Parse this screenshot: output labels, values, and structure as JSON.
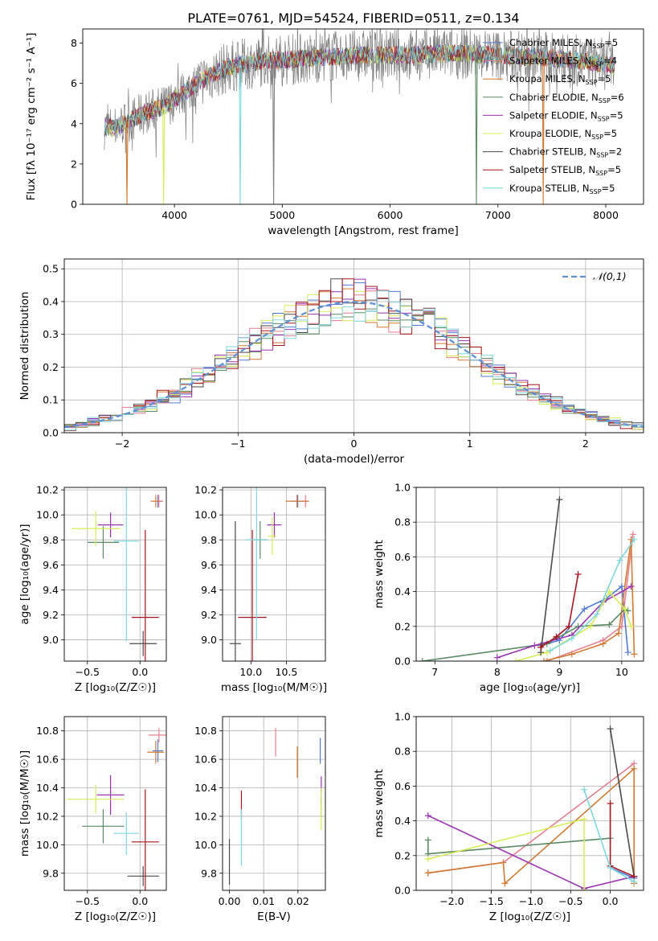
{
  "figure": {
    "title": "PLATE=0761, MJD=54524, FIBERID=0511, z=0.134"
  },
  "models": [
    {
      "name": "Chabrier MILES",
      "nssp": "5",
      "color": "#4f7bd1"
    },
    {
      "name": "Salpeter MILES",
      "nssp": "4",
      "color": "#e47f91"
    },
    {
      "name": "Kroupa MILES",
      "nssp": "5",
      "color": "#d07a33"
    },
    {
      "name": "Chabrier ELODIE",
      "nssp": "6",
      "color": "#5a8a63"
    },
    {
      "name": "Salpeter ELODIE",
      "nssp": "5",
      "color": "#9a32b0"
    },
    {
      "name": "Kroupa ELODIE",
      "nssp": "5",
      "color": "#d8ec5a"
    },
    {
      "name": "Chabrier STELIB",
      "nssp": "2",
      "color": "#4a4a4a"
    },
    {
      "name": "Salpeter STELIB",
      "nssp": "5",
      "color": "#a8141e"
    },
    {
      "name": "Kroupa STELIB",
      "nssp": "5",
      "color": "#7fd7de"
    }
  ],
  "chart_data": [
    {
      "type": "line",
      "panel": "spectrum",
      "xlabel": "wavelength [Angstrom, rest frame]",
      "ylabel": "Flux [f_λ 10^-17 erg cm^-2 s^-1 A^-1]",
      "xlim": [
        3150,
        8350
      ],
      "ylim": [
        0,
        8.7
      ],
      "xticks": [
        4000,
        5000,
        6000,
        7000,
        8000
      ],
      "yticks": [
        0,
        2,
        4,
        6,
        8
      ],
      "grid": false,
      "legend_position": "right",
      "legend_suffix": "N_SSP=",
      "data_color": "#808080",
      "continuum": [
        {
          "x": 3350,
          "y": 3.8
        },
        {
          "x": 3450,
          "y": 3.8
        },
        {
          "x": 3600,
          "y": 4.2
        },
        {
          "x": 3750,
          "y": 4.6
        },
        {
          "x": 3900,
          "y": 4.8
        },
        {
          "x": 4000,
          "y": 5.2
        },
        {
          "x": 4100,
          "y": 5.6
        },
        {
          "x": 4300,
          "y": 6.3
        },
        {
          "x": 4500,
          "y": 6.8
        },
        {
          "x": 4800,
          "y": 7.1
        },
        {
          "x": 5100,
          "y": 7.2
        },
        {
          "x": 5400,
          "y": 7.3
        },
        {
          "x": 5800,
          "y": 7.4
        },
        {
          "x": 6200,
          "y": 7.4
        },
        {
          "x": 6600,
          "y": 7.5
        },
        {
          "x": 7000,
          "y": 7.4
        },
        {
          "x": 7400,
          "y": 7.3
        },
        {
          "x": 7800,
          "y": 7.1
        },
        {
          "x": 8080,
          "y": 6.9
        }
      ],
      "dips": [
        {
          "x": 3560,
          "color": "#d07a33"
        },
        {
          "x": 3900,
          "color": "#d8ec5a"
        },
        {
          "x": 4610,
          "color": "#7fd7de"
        },
        {
          "x": 4920,
          "color": "#808080"
        },
        {
          "x": 6800,
          "color": "#5a8a63"
        },
        {
          "x": 7420,
          "color": "#d07a33"
        }
      ]
    },
    {
      "type": "histogram",
      "panel": "residuals",
      "xlabel": "(data-model)/error",
      "ylabel": "Normed distribution",
      "xlim": [
        -2.5,
        2.5
      ],
      "ylim": [
        0,
        0.53
      ],
      "xticks": [
        -2,
        -1,
        0,
        1,
        2
      ],
      "yticks": [
        0.0,
        0.1,
        0.2,
        0.3,
        0.4,
        0.5
      ],
      "grid": true,
      "bin_width": 0.1,
      "reference_curve": {
        "name": "𝒩(0,1)",
        "mean": 0,
        "sigma": 1,
        "color": "#5b8fd6",
        "style": "dashed"
      },
      "legend_position": "top-right"
    },
    {
      "type": "scatter",
      "panel": "age-vs-Z",
      "xlabel": "Z [log10(Z/Z☉)]",
      "ylabel": "age [log10(age/yr)]",
      "xlim": [
        -0.72,
        0.25
      ],
      "ylim": [
        8.83,
        10.22
      ],
      "xticks": [
        -0.5,
        0.0
      ],
      "yticks": [
        9.0,
        9.2,
        9.4,
        9.6,
        9.8,
        10.0,
        10.2
      ],
      "grid": true,
      "points": [
        {
          "model": 0,
          "x": 0.17,
          "y": 10.11,
          "xerr": 0.05,
          "yerr": 0.05
        },
        {
          "model": 1,
          "x": 0.18,
          "y": 10.11,
          "xerr": 0.04,
          "yerr": 0.05
        },
        {
          "model": 2,
          "x": 0.15,
          "y": 10.11,
          "xerr": 0.05,
          "yerr": 0.05
        },
        {
          "model": 3,
          "x": -0.35,
          "y": 9.78,
          "xerr": 0.15,
          "yerr": 0.13
        },
        {
          "model": 4,
          "x": -0.28,
          "y": 9.92,
          "xerr": 0.12,
          "yerr": 0.1
        },
        {
          "model": 5,
          "x": -0.42,
          "y": 9.89,
          "xerr": 0.23,
          "yerr": 0.14
        },
        {
          "model": 6,
          "x": 0.03,
          "y": 8.97,
          "xerr": 0.13,
          "yerr": 0.1
        },
        {
          "model": 7,
          "x": 0.05,
          "y": 9.18,
          "xerr": 0.13,
          "yerr": 0.7
        },
        {
          "model": 8,
          "x": -0.13,
          "y": 9.79,
          "xerr": 0.12,
          "yerr": 0.8
        }
      ]
    },
    {
      "type": "scatter",
      "panel": "age-vs-mass",
      "xlabel": "mass [log10(M/M☉)]",
      "ylabel": "",
      "xlim": [
        9.6,
        11.05
      ],
      "ylim": [
        8.83,
        10.22
      ],
      "xticks": [
        10.0,
        10.5
      ],
      "yticks": [
        9.0,
        9.2,
        9.4,
        9.6,
        9.8,
        10.0,
        10.2
      ],
      "grid": true,
      "points": [
        {
          "model": 0,
          "x": 10.66,
          "y": 10.11,
          "xerr": 0.1,
          "yerr": 0.05
        },
        {
          "model": 1,
          "x": 10.77,
          "y": 10.11,
          "xerr": 0.05,
          "yerr": 0.05
        },
        {
          "model": 2,
          "x": 10.65,
          "y": 10.11,
          "xerr": 0.16,
          "yerr": 0.05
        },
        {
          "model": 3,
          "x": 10.13,
          "y": 9.8,
          "xerr": 0.1,
          "yerr": 0.15
        },
        {
          "model": 4,
          "x": 10.33,
          "y": 9.92,
          "xerr": 0.1,
          "yerr": 0.1
        },
        {
          "model": 5,
          "x": 10.3,
          "y": 9.83,
          "xerr": 0.06,
          "yerr": 0.15
        },
        {
          "model": 6,
          "x": 9.78,
          "y": 8.97,
          "xerr": 0.08,
          "yerr": 0.98
        },
        {
          "model": 7,
          "x": 10.02,
          "y": 9.18,
          "xerr": 0.2,
          "yerr": 0.7
        },
        {
          "model": 8,
          "x": 10.08,
          "y": 9.8,
          "xerr": 0.15,
          "yerr": 0.8
        }
      ]
    },
    {
      "type": "line",
      "panel": "massweight-vs-age",
      "xlabel": "age [log10(age/yr)]",
      "ylabel": "mass weight",
      "xlim": [
        6.7,
        10.35
      ],
      "ylim": [
        0.0,
        1.0
      ],
      "xticks": [
        7,
        8,
        9,
        10
      ],
      "yticks": [
        0.0,
        0.2,
        0.4,
        0.6,
        0.8,
        1.0
      ],
      "grid": true,
      "series": [
        {
          "model": 0,
          "points": [
            [
              8.7,
              0.09
            ],
            [
              9.0,
              0.12
            ],
            [
              9.4,
              0.3
            ],
            [
              9.75,
              0.36
            ],
            [
              10.0,
              0.43
            ],
            [
              10.1,
              0.05
            ]
          ]
        },
        {
          "model": 1,
          "points": [
            [
              8.8,
              0.0
            ],
            [
              9.7,
              0.12
            ],
            [
              10.0,
              0.2
            ],
            [
              10.18,
              0.73
            ]
          ]
        },
        {
          "model": 2,
          "points": [
            [
              8.75,
              0.0
            ],
            [
              9.2,
              0.04
            ],
            [
              9.7,
              0.1
            ],
            [
              9.95,
              0.16
            ],
            [
              10.15,
              0.7
            ],
            [
              10.2,
              0.04
            ]
          ]
        },
        {
          "model": 3,
          "points": [
            [
              6.8,
              0.0
            ],
            [
              8.8,
              0.1
            ],
            [
              9.3,
              0.2
            ],
            [
              9.8,
              0.21
            ],
            [
              10.05,
              0.3
            ],
            [
              10.1,
              0.29
            ]
          ]
        },
        {
          "model": 4,
          "points": [
            [
              8.0,
              0.02
            ],
            [
              8.6,
              0.09
            ],
            [
              9.2,
              0.15
            ],
            [
              9.7,
              0.34
            ],
            [
              10.15,
              0.43
            ]
          ]
        },
        {
          "model": 5,
          "points": [
            [
              8.3,
              0.0
            ],
            [
              8.8,
              0.05
            ],
            [
              9.5,
              0.2
            ],
            [
              9.8,
              0.4
            ],
            [
              10.05,
              0.3
            ],
            [
              10.15,
              0.2
            ]
          ]
        },
        {
          "model": 6,
          "points": [
            [
              8.7,
              0.05
            ],
            [
              9.0,
              0.93
            ]
          ]
        },
        {
          "model": 7,
          "points": [
            [
              8.7,
              0.08
            ],
            [
              8.95,
              0.14
            ],
            [
              9.15,
              0.2
            ],
            [
              9.3,
              0.5
            ]
          ]
        },
        {
          "model": 8,
          "points": [
            [
              8.85,
              0.06
            ],
            [
              9.2,
              0.13
            ],
            [
              9.6,
              0.27
            ],
            [
              9.97,
              0.58
            ],
            [
              10.2,
              0.7
            ]
          ]
        }
      ]
    },
    {
      "type": "scatter",
      "panel": "mass-vs-Z",
      "xlabel": "Z [log10(Z/Z☉)]",
      "ylabel": "mass [log10(M/M☉)]",
      "xlim": [
        -0.72,
        0.25
      ],
      "ylim": [
        9.68,
        10.9
      ],
      "xticks": [
        -0.5,
        0.0
      ],
      "yticks": [
        9.8,
        10.0,
        10.2,
        10.4,
        10.6,
        10.8
      ],
      "grid": true,
      "points": [
        {
          "model": 0,
          "x": 0.17,
          "y": 10.66,
          "xerr": 0.05,
          "yerr": 0.08
        },
        {
          "model": 1,
          "x": 0.18,
          "y": 10.77,
          "xerr": 0.1,
          "yerr": 0.05
        },
        {
          "model": 2,
          "x": 0.15,
          "y": 10.65,
          "xerr": 0.08,
          "yerr": 0.08
        },
        {
          "model": 3,
          "x": -0.35,
          "y": 10.13,
          "xerr": 0.2,
          "yerr": 0.12
        },
        {
          "model": 4,
          "x": -0.28,
          "y": 10.35,
          "xerr": 0.13,
          "yerr": 0.14
        },
        {
          "model": 5,
          "x": -0.42,
          "y": 10.32,
          "xerr": 0.27,
          "yerr": 0.1
        },
        {
          "model": 6,
          "x": 0.03,
          "y": 9.78,
          "xerr": 0.15,
          "yerr": 0.07
        },
        {
          "model": 7,
          "x": 0.05,
          "y": 10.02,
          "xerr": 0.13,
          "yerr": 0.37
        },
        {
          "model": 8,
          "x": -0.13,
          "y": 10.08,
          "xerr": 0.12,
          "yerr": 0.15
        }
      ]
    },
    {
      "type": "scatter",
      "panel": "mass-vs-EBV",
      "xlabel": "E(B-V)",
      "ylabel": "",
      "xlim": [
        -0.002,
        0.028
      ],
      "ylim": [
        9.68,
        10.9
      ],
      "xticks": [
        0.0,
        0.01,
        0.02
      ],
      "yticks": [
        9.8,
        10.0,
        10.2,
        10.4,
        10.6,
        10.8
      ],
      "grid": true,
      "points": [
        {
          "model": 0,
          "x": 0.0265,
          "y": 10.66,
          "xerr": 0,
          "yerr": 0.09
        },
        {
          "model": 1,
          "x": 0.0135,
          "y": 10.72,
          "xerr": 0,
          "yerr": 0.1
        },
        {
          "model": 2,
          "x": 0.0198,
          "y": 10.58,
          "xerr": 0,
          "yerr": 0.11
        },
        {
          "model": 3,
          "x": 0.0268,
          "y": 10.26,
          "xerr": 0,
          "yerr": 0.07
        },
        {
          "model": 4,
          "x": 0.0268,
          "y": 10.38,
          "xerr": 0,
          "yerr": 0.1
        },
        {
          "model": 5,
          "x": 0.0268,
          "y": 10.25,
          "xerr": 0,
          "yerr": 0.15
        },
        {
          "model": 6,
          "x": 0.0,
          "y": 9.88,
          "xerr": 0,
          "yerr": 0.16
        },
        {
          "model": 7,
          "x": 0.0035,
          "y": 10.28,
          "xerr": 0,
          "yerr": 0.1
        },
        {
          "model": 8,
          "x": 0.0035,
          "y": 10.05,
          "xerr": 0,
          "yerr": 0.2
        }
      ]
    },
    {
      "type": "line",
      "panel": "massweight-vs-Z",
      "xlabel": "Z [log10(Z/Z☉)]",
      "ylabel": "mass weight",
      "xlim": [
        -2.45,
        0.42
      ],
      "ylim": [
        0.0,
        1.0
      ],
      "xticks": [
        -2.0,
        -1.5,
        -1.0,
        -0.5,
        0.0
      ],
      "yticks": [
        0.0,
        0.2,
        0.4,
        0.6,
        0.8,
        1.0
      ],
      "grid": true,
      "series": [
        {
          "model": 0,
          "points": [
            [
              0.0,
              0.13
            ],
            [
              0.3,
              0.07
            ]
          ]
        },
        {
          "model": 1,
          "points": [
            [
              -2.3,
              0.1
            ],
            [
              -1.35,
              0.16
            ],
            [
              0.3,
              0.73
            ]
          ]
        },
        {
          "model": 2,
          "points": [
            [
              -2.3,
              0.1
            ],
            [
              -1.35,
              0.16
            ],
            [
              -1.33,
              0.04
            ],
            [
              0.3,
              0.7
            ],
            [
              0.3,
              0.04
            ]
          ]
        },
        {
          "model": 3,
          "points": [
            [
              -2.3,
              0.29
            ],
            [
              -2.3,
              0.21
            ],
            [
              0.0,
              0.3
            ]
          ]
        },
        {
          "model": 4,
          "points": [
            [
              -2.3,
              0.43
            ],
            [
              -0.33,
              0.01
            ],
            [
              0.3,
              0.08
            ]
          ]
        },
        {
          "model": 5,
          "points": [
            [
              -2.3,
              0.18
            ],
            [
              -0.33,
              0.41
            ],
            [
              -0.33,
              0.0
            ]
          ]
        },
        {
          "model": 6,
          "points": [
            [
              0.0,
              0.93
            ],
            [
              0.3,
              0.08
            ]
          ]
        },
        {
          "model": 7,
          "points": [
            [
              0.0,
              0.5
            ],
            [
              0.0,
              0.14
            ],
            [
              0.3,
              0.08
            ]
          ]
        },
        {
          "model": 8,
          "points": [
            [
              -0.33,
              0.58
            ],
            [
              0.0,
              0.13
            ],
            [
              0.3,
              0.05
            ]
          ]
        }
      ]
    }
  ]
}
